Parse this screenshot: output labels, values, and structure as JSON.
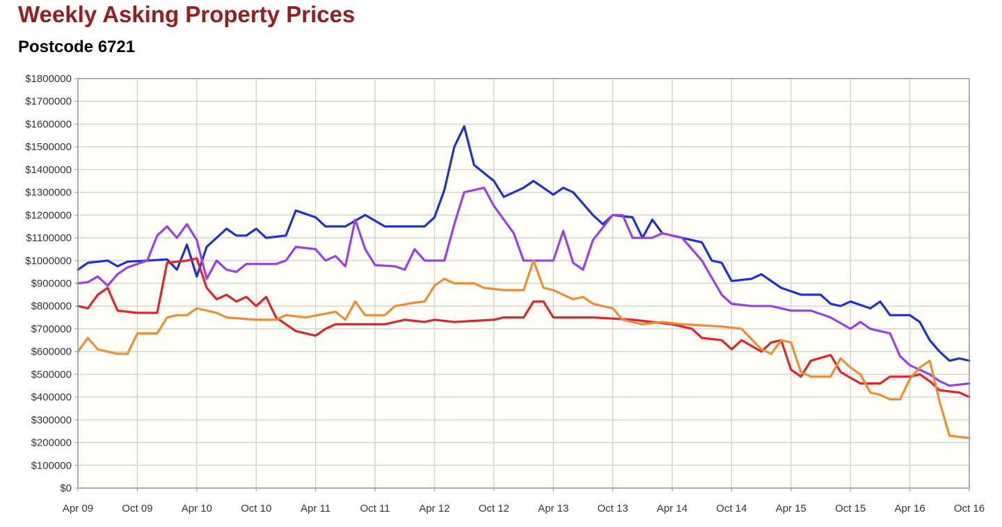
{
  "page": {
    "title": "Weekly Asking Property Prices",
    "subtitle": "Postcode 6721"
  },
  "colors": {
    "title": "#9b1d20",
    "plot_background": "#fffff8",
    "grid": "#d4d4d4",
    "frame": "#999999"
  },
  "chart_data": {
    "type": "line",
    "title": "Weekly Asking Property Prices",
    "subtitle": "Postcode 6721",
    "xlabel": "",
    "ylabel": "",
    "x_ticks": [
      "Apr 09",
      "Oct 09",
      "Apr 10",
      "Oct 10",
      "Apr 11",
      "Oct 11",
      "Apr 12",
      "Oct 12",
      "Apr 13",
      "Oct 13",
      "Apr 14",
      "Oct 14",
      "Apr 15",
      "Oct 15",
      "Apr 16",
      "Oct 16"
    ],
    "y_ticks": [
      "$0",
      "$100000",
      "$200000",
      "$300000",
      "$400000",
      "$500000",
      "$600000",
      "$700000",
      "$800000",
      "$900000",
      "$1000000",
      "$1100000",
      "$1200000",
      "$1300000",
      "$1400000",
      "$1500000",
      "$1600000",
      "$1700000",
      "$1800000"
    ],
    "ylim": [
      0,
      1800000
    ],
    "xlim": [
      "2009-04",
      "2016-10"
    ],
    "grid": true,
    "legend": "none",
    "series": [
      {
        "color": "#1f2fe0",
        "points": [
          [
            "2009-04",
            960000
          ],
          [
            "2009-05",
            990000
          ],
          [
            "2009-07",
            1000000
          ],
          [
            "2009-08",
            975000
          ],
          [
            "2009-09",
            995000
          ],
          [
            "2009-11",
            1000000
          ],
          [
            "2010-01",
            1005000
          ],
          [
            "2010-02",
            960000
          ],
          [
            "2010-03",
            1070000
          ],
          [
            "2010-04",
            930000
          ],
          [
            "2010-05",
            1060000
          ],
          [
            "2010-07",
            1140000
          ],
          [
            "2010-08",
            1110000
          ],
          [
            "2010-09",
            1110000
          ],
          [
            "2010-10",
            1140000
          ],
          [
            "2010-11",
            1100000
          ],
          [
            "2011-01",
            1110000
          ],
          [
            "2011-02",
            1220000
          ],
          [
            "2011-04",
            1190000
          ],
          [
            "2011-05",
            1150000
          ],
          [
            "2011-07",
            1150000
          ],
          [
            "2011-09",
            1200000
          ],
          [
            "2011-11",
            1150000
          ],
          [
            "2012-01",
            1150000
          ],
          [
            "2012-03",
            1150000
          ],
          [
            "2012-04",
            1190000
          ],
          [
            "2012-05",
            1310000
          ],
          [
            "2012-06",
            1500000
          ],
          [
            "2012-07",
            1590000
          ],
          [
            "2012-08",
            1420000
          ],
          [
            "2012-10",
            1350000
          ],
          [
            "2012-11",
            1280000
          ],
          [
            "2013-01",
            1320000
          ],
          [
            "2013-02",
            1350000
          ],
          [
            "2013-04",
            1290000
          ],
          [
            "2013-05",
            1320000
          ],
          [
            "2013-06",
            1300000
          ],
          [
            "2013-08",
            1200000
          ],
          [
            "2013-09",
            1160000
          ],
          [
            "2013-10",
            1200000
          ],
          [
            "2013-12",
            1190000
          ],
          [
            "2014-01",
            1100000
          ],
          [
            "2014-02",
            1180000
          ],
          [
            "2014-03",
            1120000
          ],
          [
            "2014-05",
            1100000
          ],
          [
            "2014-07",
            1080000
          ],
          [
            "2014-08",
            1000000
          ],
          [
            "2014-09",
            990000
          ],
          [
            "2014-10",
            910000
          ],
          [
            "2014-12",
            920000
          ],
          [
            "2015-01",
            940000
          ],
          [
            "2015-03",
            880000
          ],
          [
            "2015-05",
            850000
          ],
          [
            "2015-07",
            850000
          ],
          [
            "2015-08",
            810000
          ],
          [
            "2015-09",
            800000
          ],
          [
            "2015-10",
            820000
          ],
          [
            "2015-12",
            790000
          ],
          [
            "2016-01",
            820000
          ],
          [
            "2016-02",
            760000
          ],
          [
            "2016-04",
            760000
          ],
          [
            "2016-05",
            730000
          ],
          [
            "2016-06",
            650000
          ],
          [
            "2016-07",
            600000
          ],
          [
            "2016-08",
            560000
          ],
          [
            "2016-09",
            570000
          ],
          [
            "2016-10",
            560000
          ]
        ]
      },
      {
        "color": "#9b3ef0",
        "points": [
          [
            "2009-04",
            900000
          ],
          [
            "2009-05",
            905000
          ],
          [
            "2009-06",
            930000
          ],
          [
            "2009-07",
            890000
          ],
          [
            "2009-08",
            940000
          ],
          [
            "2009-09",
            970000
          ],
          [
            "2009-11",
            1000000
          ],
          [
            "2009-12",
            1110000
          ],
          [
            "2010-01",
            1150000
          ],
          [
            "2010-02",
            1100000
          ],
          [
            "2010-03",
            1160000
          ],
          [
            "2010-04",
            1090000
          ],
          [
            "2010-05",
            920000
          ],
          [
            "2010-06",
            1000000
          ],
          [
            "2010-07",
            960000
          ],
          [
            "2010-08",
            950000
          ],
          [
            "2010-09",
            985000
          ],
          [
            "2010-12",
            985000
          ],
          [
            "2011-01",
            1000000
          ],
          [
            "2011-02",
            1060000
          ],
          [
            "2011-04",
            1050000
          ],
          [
            "2011-05",
            1000000
          ],
          [
            "2011-06",
            1020000
          ],
          [
            "2011-07",
            975000
          ],
          [
            "2011-08",
            1180000
          ],
          [
            "2011-09",
            1050000
          ],
          [
            "2011-10",
            980000
          ],
          [
            "2011-12",
            975000
          ],
          [
            "2012-01",
            960000
          ],
          [
            "2012-02",
            1050000
          ],
          [
            "2012-03",
            1000000
          ],
          [
            "2012-05",
            1000000
          ],
          [
            "2012-06",
            1160000
          ],
          [
            "2012-07",
            1300000
          ],
          [
            "2012-09",
            1320000
          ],
          [
            "2012-10",
            1240000
          ],
          [
            "2012-12",
            1120000
          ],
          [
            "2013-01",
            1000000
          ],
          [
            "2013-03",
            1000000
          ],
          [
            "2013-04",
            1000000
          ],
          [
            "2013-05",
            1130000
          ],
          [
            "2013-06",
            990000
          ],
          [
            "2013-07",
            960000
          ],
          [
            "2013-08",
            1090000
          ],
          [
            "2013-10",
            1200000
          ],
          [
            "2013-11",
            1200000
          ],
          [
            "2013-12",
            1100000
          ],
          [
            "2014-02",
            1100000
          ],
          [
            "2014-03",
            1120000
          ],
          [
            "2014-05",
            1100000
          ],
          [
            "2014-07",
            1000000
          ],
          [
            "2014-09",
            850000
          ],
          [
            "2014-10",
            810000
          ],
          [
            "2014-12",
            800000
          ],
          [
            "2015-02",
            800000
          ],
          [
            "2015-04",
            780000
          ],
          [
            "2015-06",
            780000
          ],
          [
            "2015-08",
            750000
          ],
          [
            "2015-10",
            700000
          ],
          [
            "2015-11",
            730000
          ],
          [
            "2015-12",
            700000
          ],
          [
            "2016-02",
            680000
          ],
          [
            "2016-03",
            580000
          ],
          [
            "2016-04",
            540000
          ],
          [
            "2016-06",
            500000
          ],
          [
            "2016-07",
            470000
          ],
          [
            "2016-08",
            450000
          ],
          [
            "2016-10",
            460000
          ]
        ]
      },
      {
        "color": "#e8212a",
        "points": [
          [
            "2009-04",
            800000
          ],
          [
            "2009-05",
            790000
          ],
          [
            "2009-06",
            850000
          ],
          [
            "2009-07",
            880000
          ],
          [
            "2009-08",
            780000
          ],
          [
            "2009-10",
            770000
          ],
          [
            "2009-12",
            770000
          ],
          [
            "2010-01",
            990000
          ],
          [
            "2010-03",
            1000000
          ],
          [
            "2010-04",
            1010000
          ],
          [
            "2010-05",
            880000
          ],
          [
            "2010-06",
            830000
          ],
          [
            "2010-07",
            850000
          ],
          [
            "2010-08",
            820000
          ],
          [
            "2010-09",
            840000
          ],
          [
            "2010-10",
            800000
          ],
          [
            "2010-11",
            840000
          ],
          [
            "2010-12",
            750000
          ],
          [
            "2011-01",
            720000
          ],
          [
            "2011-02",
            690000
          ],
          [
            "2011-04",
            670000
          ],
          [
            "2011-05",
            700000
          ],
          [
            "2011-06",
            720000
          ],
          [
            "2011-08",
            720000
          ],
          [
            "2011-09",
            720000
          ],
          [
            "2011-11",
            720000
          ],
          [
            "2012-01",
            740000
          ],
          [
            "2012-03",
            730000
          ],
          [
            "2012-04",
            740000
          ],
          [
            "2012-06",
            730000
          ],
          [
            "2012-08",
            735000
          ],
          [
            "2012-10",
            740000
          ],
          [
            "2012-11",
            750000
          ],
          [
            "2013-01",
            750000
          ],
          [
            "2013-02",
            820000
          ],
          [
            "2013-03",
            820000
          ],
          [
            "2013-04",
            750000
          ],
          [
            "2013-06",
            750000
          ],
          [
            "2013-08",
            750000
          ],
          [
            "2013-10",
            745000
          ],
          [
            "2013-12",
            740000
          ],
          [
            "2014-02",
            730000
          ],
          [
            "2014-04",
            720000
          ],
          [
            "2014-06",
            700000
          ],
          [
            "2014-07",
            660000
          ],
          [
            "2014-09",
            650000
          ],
          [
            "2014-10",
            610000
          ],
          [
            "2014-11",
            650000
          ],
          [
            "2015-01",
            600000
          ],
          [
            "2015-02",
            640000
          ],
          [
            "2015-03",
            650000
          ],
          [
            "2015-04",
            520000
          ],
          [
            "2015-05",
            490000
          ],
          [
            "2015-06",
            560000
          ],
          [
            "2015-08",
            585000
          ],
          [
            "2015-09",
            510000
          ],
          [
            "2015-11",
            460000
          ],
          [
            "2016-01",
            460000
          ],
          [
            "2016-02",
            490000
          ],
          [
            "2016-04",
            490000
          ],
          [
            "2016-05",
            500000
          ],
          [
            "2016-06",
            470000
          ],
          [
            "2016-07",
            430000
          ],
          [
            "2016-09",
            420000
          ],
          [
            "2016-10",
            400000
          ]
        ]
      },
      {
        "color": "#f28c30",
        "points": [
          [
            "2009-04",
            600000
          ],
          [
            "2009-05",
            660000
          ],
          [
            "2009-06",
            610000
          ],
          [
            "2009-08",
            590000
          ],
          [
            "2009-09",
            590000
          ],
          [
            "2009-10",
            680000
          ],
          [
            "2009-12",
            680000
          ],
          [
            "2010-01",
            750000
          ],
          [
            "2010-02",
            760000
          ],
          [
            "2010-03",
            760000
          ],
          [
            "2010-04",
            790000
          ],
          [
            "2010-06",
            770000
          ],
          [
            "2010-07",
            750000
          ],
          [
            "2010-10",
            740000
          ],
          [
            "2010-12",
            740000
          ],
          [
            "2011-01",
            760000
          ],
          [
            "2011-03",
            750000
          ],
          [
            "2011-06",
            775000
          ],
          [
            "2011-07",
            740000
          ],
          [
            "2011-08",
            820000
          ],
          [
            "2011-09",
            760000
          ],
          [
            "2011-11",
            760000
          ],
          [
            "2011-12",
            800000
          ],
          [
            "2012-02",
            815000
          ],
          [
            "2012-03",
            820000
          ],
          [
            "2012-04",
            890000
          ],
          [
            "2012-05",
            920000
          ],
          [
            "2012-06",
            900000
          ],
          [
            "2012-08",
            900000
          ],
          [
            "2012-09",
            880000
          ],
          [
            "2012-11",
            870000
          ],
          [
            "2013-01",
            870000
          ],
          [
            "2013-02",
            1000000
          ],
          [
            "2013-03",
            880000
          ],
          [
            "2013-04",
            870000
          ],
          [
            "2013-06",
            830000
          ],
          [
            "2013-07",
            840000
          ],
          [
            "2013-08",
            810000
          ],
          [
            "2013-10",
            790000
          ],
          [
            "2013-11",
            740000
          ],
          [
            "2014-01",
            720000
          ],
          [
            "2014-03",
            730000
          ],
          [
            "2014-05",
            720000
          ],
          [
            "2014-07",
            715000
          ],
          [
            "2014-09",
            710000
          ],
          [
            "2014-11",
            700000
          ],
          [
            "2015-01",
            610000
          ],
          [
            "2015-02",
            590000
          ],
          [
            "2015-03",
            650000
          ],
          [
            "2015-04",
            640000
          ],
          [
            "2015-05",
            510000
          ],
          [
            "2015-06",
            490000
          ],
          [
            "2015-08",
            490000
          ],
          [
            "2015-09",
            570000
          ],
          [
            "2015-10",
            530000
          ],
          [
            "2015-11",
            500000
          ],
          [
            "2015-12",
            420000
          ],
          [
            "2016-01",
            410000
          ],
          [
            "2016-02",
            390000
          ],
          [
            "2016-03",
            390000
          ],
          [
            "2016-04",
            480000
          ],
          [
            "2016-05",
            530000
          ],
          [
            "2016-06",
            560000
          ],
          [
            "2016-07",
            380000
          ],
          [
            "2016-08",
            230000
          ],
          [
            "2016-10",
            220000
          ]
        ]
      }
    ]
  }
}
